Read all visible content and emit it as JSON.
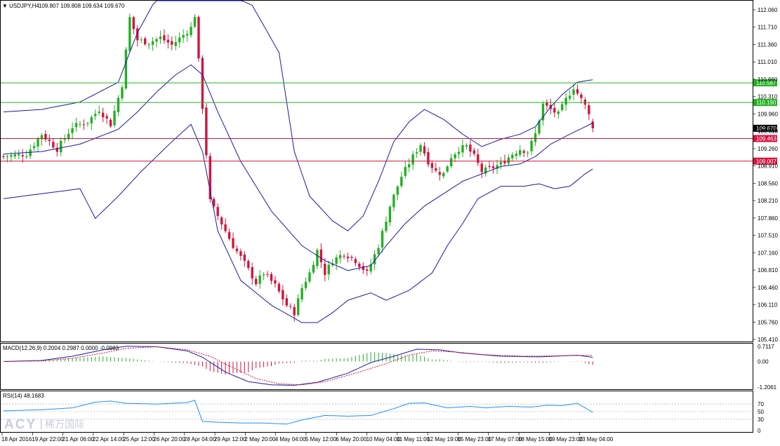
{
  "chart_data": [
    {
      "type": "candlestick",
      "title": "USDJPY,H4",
      "header_values": "109.807 109.808 109.634 109.670",
      "ylim": [
        105.41,
        112.06
      ],
      "y_ticks": [
        "112.060",
        "111.710",
        "111.360",
        "111.010",
        "110.660",
        "110.310",
        "109.960",
        "109.610",
        "109.260",
        "108.910",
        "108.560",
        "108.210",
        "107.860",
        "107.510",
        "107.160",
        "106.810",
        "106.460",
        "106.110",
        "105.760",
        "105.410"
      ],
      "x_tick_labels": [
        "18 Apr 2016",
        "19 Apr 22:00",
        "21 Apr 06:00",
        "22 Apr 14:00",
        "25 Apr 12:00",
        "26 Apr 20:00",
        "28 Apr 04:00",
        "29 Apr 12:00",
        "2 May 20:00",
        "4 May 04:00",
        "5 May 12:00",
        "6 May 20:00",
        "10 May 04:00",
        "11 May 11:00",
        "12 May 19:00",
        "15 May 23:00",
        "17 May 07:00",
        "18 May 15:00",
        "19 May 23:00",
        "23 May 04:00"
      ],
      "horizontal_levels": [
        {
          "value": 110.587,
          "label": "110.587",
          "color": "#22b022"
        },
        {
          "value": 110.19,
          "label": "110.190",
          "color": "#22b022"
        },
        {
          "value": 109.463,
          "label": "109.463",
          "color": "#d4143c"
        },
        {
          "value": 109.007,
          "label": "109.007",
          "color": "#d4143c"
        }
      ],
      "current_price": {
        "value": 109.67,
        "label": "109.670"
      },
      "bull_color": "#22b022",
      "bear_color": "#d4143c",
      "close_path": [
        [
          0,
          109.1
        ],
        [
          6,
          109.15
        ],
        [
          10,
          109.55
        ],
        [
          14,
          109.25
        ],
        [
          18,
          109.7
        ],
        [
          22,
          109.8
        ],
        [
          25,
          110.05
        ],
        [
          28,
          109.75
        ],
        [
          31,
          110.55
        ],
        [
          33,
          111.9
        ],
        [
          35,
          111.45
        ],
        [
          38,
          111.4
        ],
        [
          41,
          111.5
        ],
        [
          44,
          111.35
        ],
        [
          47,
          111.55
        ],
        [
          49,
          111.7
        ],
        [
          50,
          111.95
        ],
        [
          52,
          110.1
        ],
        [
          54,
          108.2
        ],
        [
          57,
          107.75
        ],
        [
          60,
          107.3
        ],
        [
          63,
          106.95
        ],
        [
          66,
          106.55
        ],
        [
          68,
          106.75
        ],
        [
          71,
          106.5
        ],
        [
          74,
          106.1
        ],
        [
          76,
          105.95
        ],
        [
          78,
          106.45
        ],
        [
          80,
          106.75
        ],
        [
          82,
          107.2
        ],
        [
          84,
          106.75
        ],
        [
          86,
          107.0
        ],
        [
          89,
          107.15
        ],
        [
          92,
          107.0
        ],
        [
          95,
          106.75
        ],
        [
          98,
          107.3
        ],
        [
          101,
          108.1
        ],
        [
          104,
          108.7
        ],
        [
          107,
          109.1
        ],
        [
          109,
          109.35
        ],
        [
          111,
          109.0
        ],
        [
          113,
          108.8
        ],
        [
          115,
          108.75
        ],
        [
          117,
          109.1
        ],
        [
          119,
          109.25
        ],
        [
          121,
          109.3
        ],
        [
          123,
          109.1
        ],
        [
          125,
          108.8
        ],
        [
          127,
          108.85
        ],
        [
          130,
          108.95
        ],
        [
          133,
          109.15
        ],
        [
          135,
          109.25
        ],
        [
          137,
          109.2
        ],
        [
          139,
          109.55
        ],
        [
          141,
          110.15
        ],
        [
          143,
          110.05
        ],
        [
          145,
          109.95
        ],
        [
          147,
          110.25
        ],
        [
          149,
          110.5
        ],
        [
          151,
          110.25
        ],
        [
          153,
          110.0
        ],
        [
          154,
          109.67
        ]
      ],
      "bollinger": {
        "middle": [
          [
            0,
            109.15
          ],
          [
            10,
            109.2
          ],
          [
            20,
            109.35
          ],
          [
            30,
            109.65
          ],
          [
            35,
            110.0
          ],
          [
            40,
            110.4
          ],
          [
            45,
            110.75
          ],
          [
            49,
            110.95
          ],
          [
            52,
            110.75
          ],
          [
            56,
            110.0
          ],
          [
            62,
            109.0
          ],
          [
            70,
            108.0
          ],
          [
            78,
            107.3
          ],
          [
            84,
            107.0
          ],
          [
            90,
            106.8
          ],
          [
            96,
            106.9
          ],
          [
            100,
            107.3
          ],
          [
            105,
            107.75
          ],
          [
            110,
            108.1
          ],
          [
            115,
            108.35
          ],
          [
            120,
            108.6
          ],
          [
            125,
            108.75
          ],
          [
            130,
            108.9
          ],
          [
            135,
            108.95
          ],
          [
            139,
            109.1
          ],
          [
            143,
            109.35
          ],
          [
            148,
            109.55
          ],
          [
            152,
            109.7
          ],
          [
            154,
            109.78
          ]
        ],
        "upper": [
          [
            0,
            110.0
          ],
          [
            10,
            110.05
          ],
          [
            20,
            110.2
          ],
          [
            30,
            110.6
          ],
          [
            35,
            111.6
          ],
          [
            40,
            112.3
          ],
          [
            48,
            112.6
          ],
          [
            53,
            112.55
          ],
          [
            58,
            112.4
          ],
          [
            65,
            112.15
          ],
          [
            72,
            111.2
          ],
          [
            76,
            109.2
          ],
          [
            80,
            108.3
          ],
          [
            86,
            107.8
          ],
          [
            90,
            107.6
          ],
          [
            94,
            107.9
          ],
          [
            98,
            108.6
          ],
          [
            102,
            109.4
          ],
          [
            106,
            109.8
          ],
          [
            110,
            110.05
          ],
          [
            115,
            109.85
          ],
          [
            120,
            109.55
          ],
          [
            125,
            109.3
          ],
          [
            130,
            109.45
          ],
          [
            135,
            109.55
          ],
          [
            139,
            109.7
          ],
          [
            143,
            110.1
          ],
          [
            146,
            110.35
          ],
          [
            150,
            110.6
          ],
          [
            154,
            110.65
          ]
        ],
        "lower": [
          [
            0,
            108.25
          ],
          [
            10,
            108.35
          ],
          [
            20,
            108.45
          ],
          [
            24,
            107.85
          ],
          [
            30,
            108.3
          ],
          [
            36,
            108.8
          ],
          [
            44,
            109.4
          ],
          [
            49,
            109.75
          ],
          [
            52,
            109.2
          ],
          [
            56,
            107.6
          ],
          [
            62,
            106.6
          ],
          [
            70,
            106.1
          ],
          [
            78,
            105.75
          ],
          [
            82,
            105.75
          ],
          [
            86,
            105.95
          ],
          [
            90,
            106.2
          ],
          [
            96,
            106.35
          ],
          [
            100,
            106.2
          ],
          [
            106,
            106.4
          ],
          [
            112,
            106.75
          ],
          [
            116,
            107.3
          ],
          [
            120,
            107.75
          ],
          [
            124,
            108.25
          ],
          [
            130,
            108.5
          ],
          [
            136,
            108.5
          ],
          [
            140,
            108.55
          ],
          [
            144,
            108.45
          ],
          [
            148,
            108.5
          ],
          [
            152,
            108.75
          ],
          [
            154,
            108.85
          ]
        ]
      }
    },
    {
      "type": "macd",
      "header": "MACD(12,26,9) 0.2004 0.2987 0.0000 -0.0983",
      "ylim": [
        -1.2061,
        0.7117
      ],
      "y_ticks": [
        "0.7117",
        "0.00",
        "-1.2061"
      ],
      "macd_path": [
        [
          0,
          0.0
        ],
        [
          10,
          0.05
        ],
        [
          18,
          0.25
        ],
        [
          26,
          0.55
        ],
        [
          32,
          0.72
        ],
        [
          40,
          0.7
        ],
        [
          48,
          0.5
        ],
        [
          52,
          0.2
        ],
        [
          58,
          -0.5
        ],
        [
          64,
          -0.95
        ],
        [
          70,
          -1.1
        ],
        [
          76,
          -1.12
        ],
        [
          82,
          -0.98
        ],
        [
          90,
          -0.55
        ],
        [
          96,
          -0.05
        ],
        [
          102,
          0.25
        ],
        [
          108,
          0.58
        ],
        [
          114,
          0.55
        ],
        [
          120,
          0.4
        ],
        [
          130,
          0.25
        ],
        [
          140,
          0.22
        ],
        [
          150,
          0.3
        ],
        [
          154,
          0.2
        ]
      ],
      "signal_path": [
        [
          0,
          0.0
        ],
        [
          10,
          0.03
        ],
        [
          18,
          0.15
        ],
        [
          26,
          0.4
        ],
        [
          32,
          0.62
        ],
        [
          40,
          0.7
        ],
        [
          48,
          0.55
        ],
        [
          54,
          0.25
        ],
        [
          60,
          -0.3
        ],
        [
          66,
          -0.8
        ],
        [
          72,
          -1.05
        ],
        [
          78,
          -1.1
        ],
        [
          84,
          -0.95
        ],
        [
          92,
          -0.55
        ],
        [
          100,
          -0.1
        ],
        [
          106,
          0.3
        ],
        [
          112,
          0.5
        ],
        [
          118,
          0.45
        ],
        [
          126,
          0.32
        ],
        [
          136,
          0.25
        ],
        [
          146,
          0.27
        ],
        [
          154,
          0.3
        ]
      ],
      "macd_color": "#1a1aa6",
      "signal_color": "#d4143c"
    },
    {
      "type": "rsi",
      "header": "RSI(14) 48.1683",
      "ylim": [
        0,
        100
      ],
      "y_ticks": [
        "70",
        "50",
        "30",
        "0"
      ],
      "levels": [
        70,
        50,
        30
      ],
      "rsi_path": [
        [
          0,
          52
        ],
        [
          10,
          55
        ],
        [
          18,
          60
        ],
        [
          24,
          75
        ],
        [
          28,
          78
        ],
        [
          32,
          72
        ],
        [
          40,
          70
        ],
        [
          48,
          74
        ],
        [
          50,
          80
        ],
        [
          52,
          24
        ],
        [
          56,
          22
        ],
        [
          62,
          20
        ],
        [
          68,
          20
        ],
        [
          74,
          17
        ],
        [
          78,
          28
        ],
        [
          84,
          40
        ],
        [
          90,
          38
        ],
        [
          96,
          40
        ],
        [
          102,
          58
        ],
        [
          106,
          72
        ],
        [
          110,
          73
        ],
        [
          116,
          60
        ],
        [
          122,
          64
        ],
        [
          126,
          60
        ],
        [
          132,
          64
        ],
        [
          138,
          62
        ],
        [
          142,
          67
        ],
        [
          146,
          66
        ],
        [
          150,
          72
        ],
        [
          154,
          48
        ]
      ],
      "rsi_color": "#1e90ff"
    }
  ],
  "watermark": {
    "brand": "ACY",
    "cn": "稀万国际"
  }
}
